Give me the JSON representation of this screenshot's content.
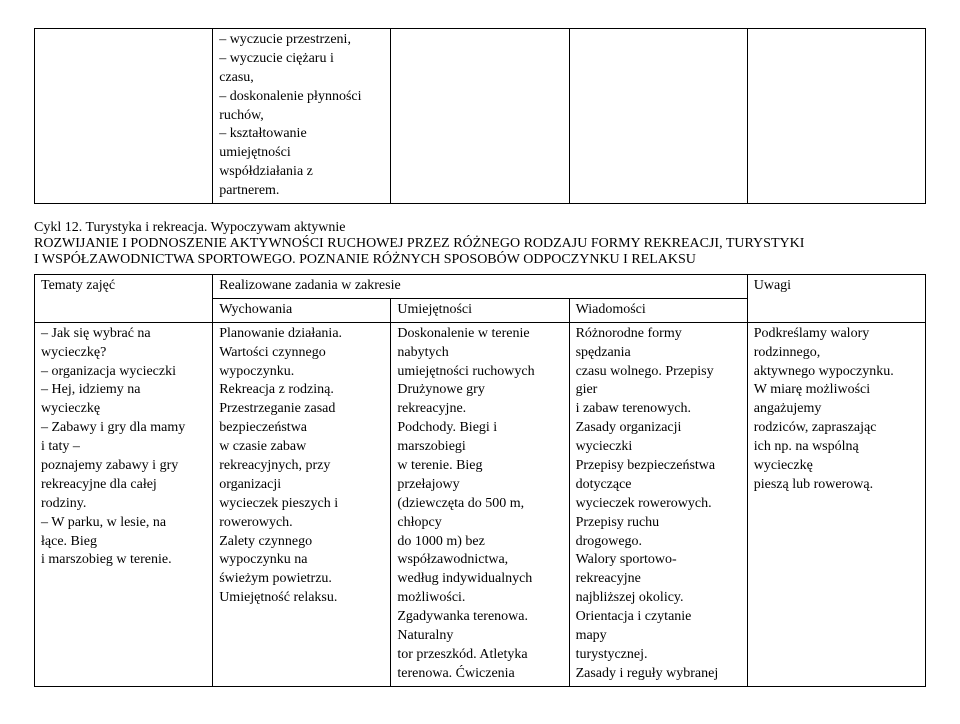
{
  "topTable": {
    "col2_lines": [
      "– wyczucie przestrzeni,",
      "– wyczucie ciężaru i",
      "czasu,",
      "– doskonalenie płynności",
      "ruchów,",
      "– kształtowanie",
      "umiejętności",
      "współdziałania z",
      "partnerem."
    ]
  },
  "heading": {
    "line1": "Cykl 12. Turystyka i rekreacja. Wypoczywam aktywnie",
    "line2": "ROZWIJANIE I PODNOSZENIE AKTYWNOŚCI RUCHOWEJ PRZEZ RÓŻNEGO RODZAJU FORMY REKREACJI, TURYSTYKI",
    "line3": "I WSPÓŁZAWODNICTWA SPORTOWEGO. POZNANIE RÓŻNYCH SPOSOBÓW ODPOCZYNKU I RELAKSU"
  },
  "mainTable": {
    "header": {
      "tematy": "Tematy zajęć",
      "realizowane": "Realizowane zadania w zakresie",
      "uwagi": "Uwagi",
      "wychowania": "Wychowania",
      "umiejetnosci": "Umiejętności",
      "wiadomosci": "Wiadomości"
    },
    "row": {
      "tematy_lines": [
        "– Jak się wybrać na",
        "wycieczkę?",
        "– organizacja wycieczki",
        "– Hej, idziemy na",
        "wycieczkę",
        "– Zabawy i gry dla mamy",
        "i taty –",
        "poznajemy zabawy i gry",
        "rekreacyjne dla całej",
        "rodziny.",
        "– W parku, w lesie, na",
        "łące. Bieg",
        "i marszobieg w terenie."
      ],
      "wychowania_lines": [
        "Planowanie działania.",
        "Wartości czynnego",
        "wypoczynku.",
        "Rekreacja z rodziną.",
        "Przestrzeganie zasad",
        "bezpieczeństwa",
        "w czasie zabaw",
        "rekreacyjnych, przy",
        "organizacji",
        "wycieczek pieszych i",
        "rowerowych.",
        "Zalety czynnego",
        "wypoczynku na",
        "świeżym powietrzu.",
        "Umiejętność relaksu."
      ],
      "umiejetnosci_lines": [
        "Doskonalenie w terenie",
        "nabytych",
        "umiejętności ruchowych",
        "Drużynowe gry",
        "rekreacyjne.",
        "Podchody. Biegi i",
        "marszobiegi",
        "w terenie. Bieg",
        "przełajowy",
        "(dziewczęta do 500 m,",
        "chłopcy",
        "do 1000 m) bez",
        "współzawodnictwa,",
        "według indywidualnych",
        "możliwości.",
        "Zgadywanka terenowa.",
        "Naturalny",
        "tor przeszkód. Atletyka",
        "terenowa. Ćwiczenia"
      ],
      "wiadomosci_lines": [
        "Różnorodne formy",
        "spędzania",
        "czasu wolnego. Przepisy",
        "gier",
        "i zabaw terenowych.",
        "Zasady organizacji",
        "wycieczki",
        "Przepisy bezpieczeństwa",
        "dotyczące",
        "wycieczek rowerowych.",
        "Przepisy ruchu",
        "drogowego.",
        "Walory sportowo-",
        "rekreacyjne",
        "najbliższej okolicy.",
        "Orientacja i czytanie",
        "mapy",
        "turystycznej.",
        "Zasady i reguły wybranej"
      ],
      "uwagi_lines": [
        "Podkreślamy walory",
        "rodzinnego,",
        "aktywnego wypoczynku.",
        "W miarę możliwości",
        "angażujemy",
        "rodziców, zapraszając",
        "ich np. na wspólną",
        "wycieczkę",
        "pieszą lub rowerową."
      ]
    }
  }
}
